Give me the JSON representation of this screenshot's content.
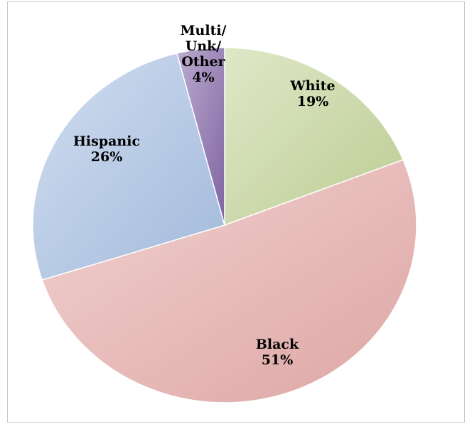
{
  "chart_data": {
    "type": "pie",
    "slices": [
      {
        "label": "White",
        "label_lines": [
          "White"
        ],
        "value": 19,
        "value_label": "19%",
        "color": "#c4d59a"
      },
      {
        "label": "Black",
        "label_lines": [
          "Black"
        ],
        "value": 51,
        "value_label": "51%",
        "color": "#e6adab"
      },
      {
        "label": "Hispanic",
        "label_lines": [
          "Hispanic"
        ],
        "value": 26,
        "value_label": "26%",
        "color": "#a9c2e4"
      },
      {
        "label": "Multi/Unk/Other",
        "label_lines": [
          "Multi/",
          "Unk/",
          "Other"
        ],
        "value": 4,
        "value_label": "4%",
        "color": "#8467a8"
      }
    ],
    "start_angle_deg": 0,
    "direction": "clockwise",
    "legend": "none"
  }
}
